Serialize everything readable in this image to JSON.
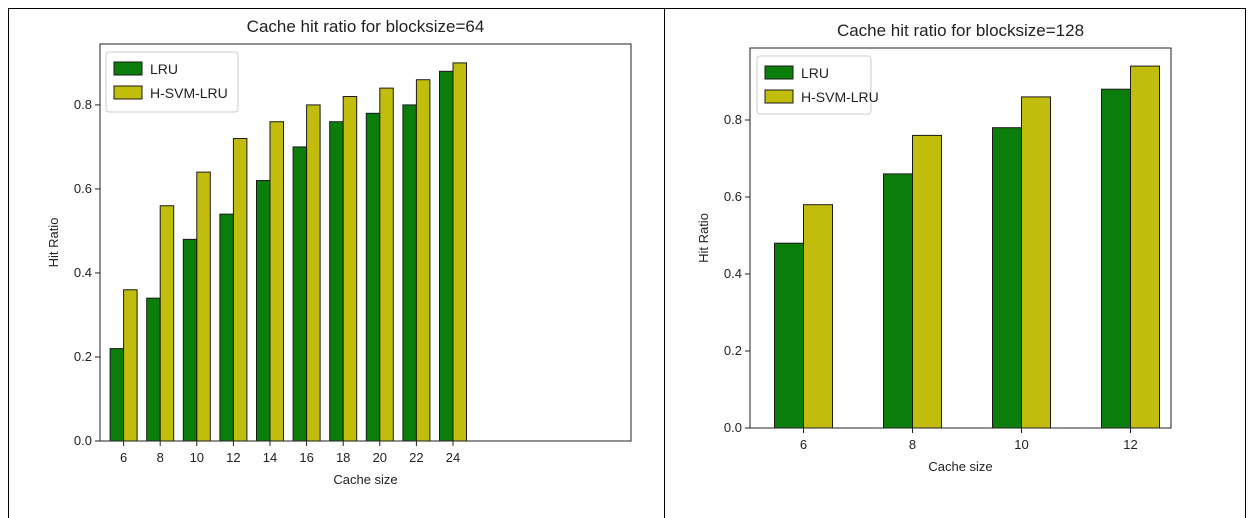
{
  "colors": {
    "LRU": "#0a7d0a",
    "H-SVM-LRU": "#c2bd0c",
    "edge": "#1a1a1a"
  },
  "chart_data": [
    {
      "type": "bar",
      "title": "Cache hit ratio for blocksize=64",
      "xlabel": "Cache size",
      "ylabel": "Hit Ratio",
      "categories": [
        "6",
        "8",
        "10",
        "12",
        "14",
        "16",
        "18",
        "20",
        "22",
        "24"
      ],
      "series": [
        {
          "name": "LRU",
          "values": [
            0.22,
            0.34,
            0.48,
            0.54,
            0.62,
            0.7,
            0.76,
            0.78,
            0.8,
            0.88
          ]
        },
        {
          "name": "H-SVM-LRU",
          "values": [
            0.36,
            0.56,
            0.64,
            0.72,
            0.76,
            0.8,
            0.82,
            0.84,
            0.86,
            0.9
          ]
        }
      ],
      "yticks": [
        "0.0",
        "0.2",
        "0.4",
        "0.6",
        "0.8"
      ],
      "ylim": [
        0,
        0.945
      ],
      "legend": "top-left",
      "grid": false
    },
    {
      "type": "bar",
      "title": "Cache hit ratio for blocksize=128",
      "xlabel": "Cache size",
      "ylabel": "Hit Ratio",
      "categories": [
        "6",
        "8",
        "10",
        "12"
      ],
      "series": [
        {
          "name": "LRU",
          "values": [
            0.48,
            0.66,
            0.78,
            0.88
          ]
        },
        {
          "name": "H-SVM-LRU",
          "values": [
            0.58,
            0.76,
            0.86,
            0.94
          ]
        }
      ],
      "yticks": [
        "0.0",
        "0.2",
        "0.4",
        "0.6",
        "0.8"
      ],
      "ylim": [
        0,
        0.987
      ],
      "legend": "top-left",
      "grid": false
    }
  ]
}
